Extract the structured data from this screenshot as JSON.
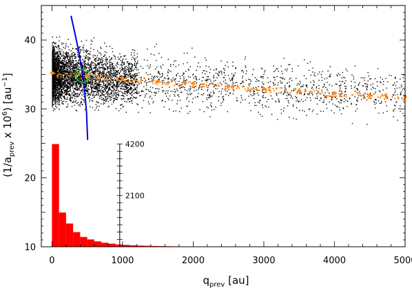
{
  "chart_data": {
    "type": "scatter",
    "title": "",
    "xlabel": {
      "base": "q",
      "sub": "prev",
      "unit": " [au]"
    },
    "ylabel": {
      "open": "(1/a",
      "sub": "prev",
      "times": " x 10",
      "exp": "6",
      "close": ")  [au",
      "unit_exp": "−1",
      "end": "]"
    },
    "xlim": [
      -150,
      5000
    ],
    "ylim": [
      10,
      45
    ],
    "x_ticks": [
      0,
      1000,
      2000,
      3000,
      4000,
      5000
    ],
    "x_tick_labels": [
      "0",
      "1000",
      "2000",
      "3000",
      "4000",
      "5000"
    ],
    "y_ticks": [
      20,
      30,
      40
    ],
    "y_tick_labels": [
      "20",
      "30",
      "40"
    ],
    "grid": false,
    "legend": "none",
    "colors": {
      "clones": "#000000",
      "trend": "#ff8c1a",
      "curve": "#0000dd",
      "circle": "#22cc22",
      "histogram": "#ff0000"
    },
    "series": [
      {
        "kind": "scatter",
        "color": "clones",
        "density": "highest near q=0, thinning toward 5000 au",
        "y_center": 35.0,
        "y_spread": 3.0
      },
      {
        "kind": "scatter",
        "color": "trend",
        "x": [
          0,
          500,
          1000,
          1500,
          2000,
          2500,
          3000,
          3500,
          4000,
          4500,
          5000
        ],
        "y": [
          35.2,
          34.8,
          34.4,
          34.0,
          33.7,
          33.3,
          32.9,
          32.6,
          32.3,
          32.0,
          31.8
        ]
      },
      {
        "kind": "line",
        "color": "curve",
        "x": [
          270,
          320,
          370,
          420,
          460,
          490,
          505
        ],
        "y": [
          43.5,
          41.2,
          38.8,
          36.0,
          33.0,
          29.5,
          25.5
        ]
      },
      {
        "kind": "circle",
        "color": "circle",
        "cx": 440,
        "cy": 34.8,
        "r": 170
      }
    ],
    "histogram": {
      "bin_width": 100,
      "bin_starts": [
        0,
        100,
        200,
        300,
        400,
        500,
        600,
        700,
        800,
        900,
        1000,
        1100,
        1200,
        1300,
        1400,
        1500,
        1600,
        1700,
        1800,
        1900,
        2000,
        2200,
        2400,
        2600,
        2800,
        3000,
        3500,
        4000,
        4500
      ],
      "counts": [
        4200,
        1400,
        950,
        600,
        400,
        300,
        220,
        165,
        125,
        95,
        75,
        60,
        48,
        40,
        32,
        26,
        22,
        18,
        15,
        13,
        10,
        8,
        6,
        5,
        4,
        3,
        2,
        2,
        1
      ],
      "axis_x": 960,
      "axis_ticks": [
        2100,
        4200
      ],
      "axis_tick_labels": [
        "2100",
        "4200"
      ],
      "axis_max": 4200
    }
  }
}
